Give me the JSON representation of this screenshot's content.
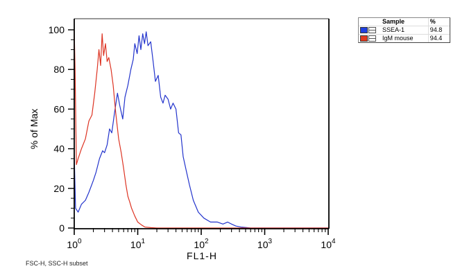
{
  "chart_data": {
    "type": "line",
    "title": "",
    "xlabel": "FL1-H",
    "ylabel": "% of Max",
    "xscale": "log",
    "xlim": [
      1,
      10000
    ],
    "ylim": [
      0,
      100
    ],
    "x_ticks": [
      "10^0",
      "10^1",
      "10^2",
      "10^3",
      "10^4"
    ],
    "y_ticks": [
      0,
      20,
      40,
      60,
      80,
      100
    ],
    "grid": false,
    "legend_position": "top-right outside",
    "series": [
      {
        "name": "SSEA-1",
        "percent": "94.8",
        "color": "#2233cc",
        "x": [
          1.0,
          1.05,
          1.15,
          1.3,
          1.5,
          1.7,
          2.0,
          2.2,
          2.5,
          2.8,
          3.0,
          3.3,
          3.6,
          3.9,
          4.3,
          4.8,
          5.2,
          5.8,
          6.3,
          7.0,
          7.8,
          8.5,
          9.0,
          9.8,
          10.5,
          11.2,
          12.0,
          12.8,
          13.6,
          14.5,
          16,
          17.5,
          19,
          21,
          23,
          25,
          27,
          30,
          33,
          36,
          40,
          44,
          48,
          52,
          58,
          65,
          75,
          90,
          110,
          140,
          180,
          220,
          260,
          300,
          350,
          420,
          520,
          600,
          1000,
          10000
        ],
        "y": [
          37,
          10,
          8,
          12,
          14,
          18,
          24,
          28,
          35,
          39,
          38,
          42,
          50,
          48,
          58,
          68,
          62,
          55,
          66,
          72,
          80,
          85,
          93,
          88,
          97,
          90,
          98,
          93,
          99,
          92,
          94,
          84,
          74,
          77,
          66,
          63,
          67,
          65,
          60,
          63,
          60,
          48,
          47,
          36,
          29,
          22,
          14,
          8,
          5,
          3,
          3,
          2,
          3,
          2,
          1,
          0.5,
          0.2,
          0,
          0,
          0
        ]
      },
      {
        "name": "IgM mouse",
        "percent": "94.4",
        "color": "#dd3322",
        "x": [
          1.0,
          1.03,
          1.08,
          1.15,
          1.3,
          1.5,
          1.7,
          1.9,
          2.1,
          2.3,
          2.45,
          2.6,
          2.75,
          2.9,
          3.1,
          3.3,
          3.5,
          3.8,
          4.1,
          4.5,
          5.0,
          5.5,
          6.0,
          6.5,
          7.0,
          7.5,
          8.0,
          9.0,
          10.0,
          11.5,
          13,
          16,
          20,
          100,
          10000
        ],
        "y": [
          100,
          80,
          32,
          35,
          40,
          45,
          54,
          57,
          68,
          80,
          90,
          82,
          98,
          87,
          93,
          84,
          86,
          80,
          72,
          58,
          45,
          38,
          30,
          22,
          16,
          13,
          10,
          6,
          3,
          1.5,
          0.5,
          0.2,
          0,
          0,
          0
        ]
      }
    ],
    "annotations": [
      "FSC-H, SSC-H subset"
    ]
  },
  "axes": {
    "xlabel": "FL1-H",
    "ylabel": "% of Max",
    "y_tick_labels": [
      "0",
      "20",
      "40",
      "60",
      "80",
      "100"
    ],
    "x_tick_exponents": [
      "0",
      "1",
      "2",
      "3",
      "4"
    ],
    "x_tick_base": "10"
  },
  "legend": {
    "header_sample": "Sample",
    "header_pct": "%",
    "rows": [
      {
        "label": "SSEA-1",
        "pct": "94.8",
        "color": "#1f3fe0"
      },
      {
        "label": "IgM mouse",
        "pct": "94.4",
        "color": "#e03a1e"
      }
    ]
  },
  "footer": {
    "subset_label": "FSC-H, SSC-H subset"
  }
}
